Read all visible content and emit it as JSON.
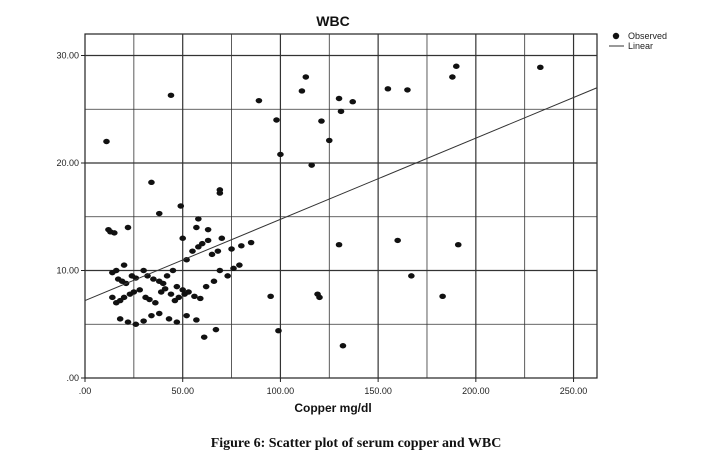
{
  "figure_caption": "Figure 6: Scatter plot of serum copper and WBC",
  "chart_data": {
    "type": "scatter",
    "title": "WBC",
    "xlabel": "Copper mg/dl",
    "ylabel": "",
    "xlim": [
      0,
      262
    ],
    "ylim": [
      0,
      32
    ],
    "x_ticks": [
      0,
      50,
      100,
      150,
      200,
      250
    ],
    "x_tick_labels": [
      ".00",
      "50.00",
      "100.00",
      "150.00",
      "200.00",
      "250.00"
    ],
    "y_ticks": [
      0,
      10,
      20,
      30
    ],
    "y_tick_labels": [
      ".00",
      "10.00",
      "20.00",
      "30.00"
    ],
    "grid": true,
    "legend": {
      "position": "top-right",
      "entries": [
        "Observed",
        "Linear"
      ]
    },
    "series": [
      {
        "name": "Observed",
        "kind": "points",
        "x": [
          12,
          13,
          15,
          16,
          20,
          22,
          14,
          17,
          19,
          21,
          24,
          26,
          30,
          32,
          35,
          38,
          40,
          42,
          45,
          47,
          50,
          52,
          55,
          58,
          60,
          63,
          65,
          68,
          70,
          14,
          16,
          18,
          20,
          23,
          25,
          28,
          31,
          33,
          36,
          39,
          41,
          44,
          46,
          48,
          51,
          53,
          56,
          59,
          62,
          66,
          69,
          73,
          76,
          79,
          18,
          22,
          26,
          30,
          34,
          38,
          43,
          47,
          52,
          57,
          61,
          67,
          75,
          80,
          85,
          49,
          34,
          11,
          44,
          38,
          57,
          63,
          69,
          69,
          58,
          50,
          89,
          98,
          100,
          111,
          113,
          116,
          121,
          125,
          130,
          131,
          137,
          155,
          165,
          188,
          190,
          233,
          99,
          95,
          120,
          119,
          132,
          130,
          160,
          167,
          183,
          191
        ],
        "y": [
          13.8,
          13.6,
          13.5,
          10.0,
          10.5,
          14.0,
          9.8,
          9.2,
          9.0,
          8.8,
          9.5,
          9.3,
          10.0,
          9.5,
          9.2,
          9.0,
          8.8,
          9.5,
          10.0,
          8.5,
          8.2,
          11.0,
          11.8,
          12.2,
          12.5,
          12.8,
          11.5,
          11.8,
          13.0,
          7.5,
          7.0,
          7.2,
          7.5,
          7.8,
          8.0,
          8.2,
          7.5,
          7.3,
          7.0,
          8.0,
          8.3,
          7.8,
          7.2,
          7.5,
          7.8,
          8.0,
          7.6,
          7.4,
          8.5,
          9.0,
          10.0,
          9.5,
          10.2,
          10.5,
          5.5,
          5.2,
          5.0,
          5.3,
          5.8,
          6.0,
          5.5,
          5.2,
          5.8,
          5.4,
          3.8,
          4.5,
          12.0,
          12.3,
          12.6,
          16.0,
          18.2,
          22.0,
          26.3,
          15.3,
          14.0,
          13.8,
          17.5,
          17.2,
          14.8,
          13.0,
          25.8,
          24.0,
          20.8,
          26.7,
          28.0,
          19.8,
          23.9,
          22.1,
          26.0,
          24.8,
          25.7,
          26.9,
          26.8,
          28.0,
          29.0,
          28.9,
          4.4,
          7.6,
          7.5,
          7.8,
          3.0,
          12.4,
          12.8,
          9.5,
          7.6,
          12.4
        ]
      },
      {
        "name": "Linear",
        "kind": "line",
        "x": [
          0,
          262
        ],
        "y": [
          7.2,
          27.0
        ]
      }
    ]
  }
}
